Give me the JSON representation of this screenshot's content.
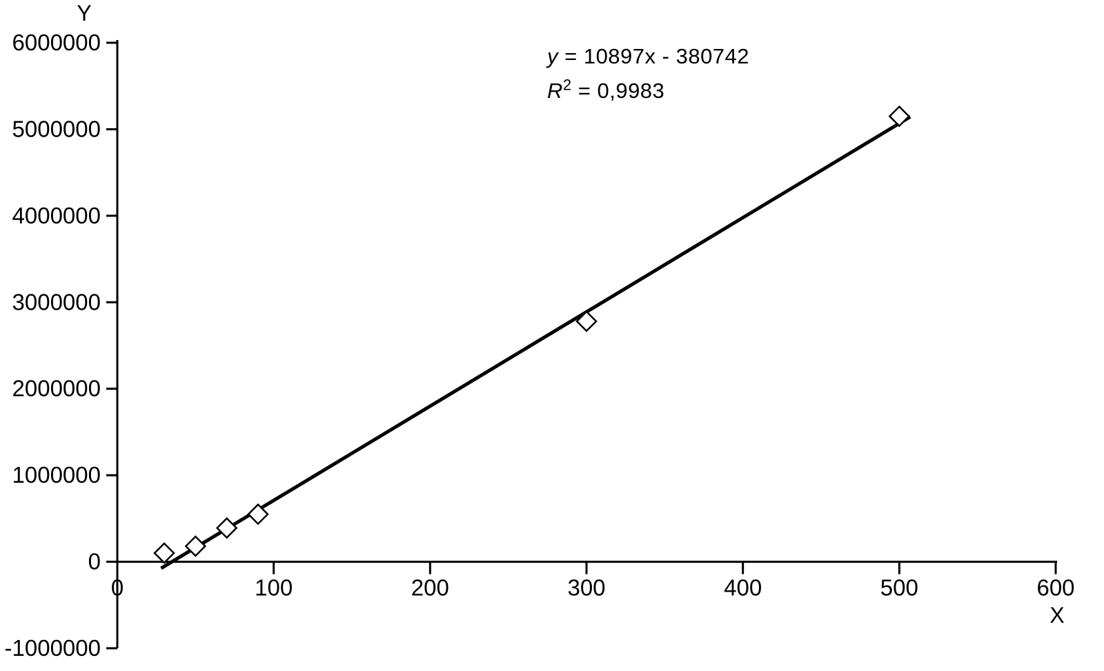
{
  "chart_data": {
    "type": "scatter",
    "title": "",
    "xlabel": "X",
    "ylabel": "Y",
    "xlim": [
      0,
      600
    ],
    "ylim": [
      -1000000,
      6000000
    ],
    "x_ticks": [
      0,
      100,
      200,
      300,
      400,
      500,
      600
    ],
    "y_ticks": [
      -1000000,
      0,
      1000000,
      2000000,
      3000000,
      4000000,
      5000000,
      6000000
    ],
    "grid": false,
    "legend": false,
    "marker": "open-diamond",
    "points": [
      {
        "x": 30,
        "y": 100000
      },
      {
        "x": 50,
        "y": 180000
      },
      {
        "x": 70,
        "y": 390000
      },
      {
        "x": 90,
        "y": 550000
      },
      {
        "x": 300,
        "y": 2780000
      },
      {
        "x": 500,
        "y": 5150000
      }
    ],
    "trendline": {
      "slope": 10897,
      "intercept": -380742,
      "x_start": 28,
      "x_end": 507
    },
    "annotation": {
      "equation_lhs": "y",
      "equation_rhs": " = 10897x - 380742",
      "r2_base": "R",
      "r2_exp": "2",
      "r2_value": " = 0,9983"
    },
    "colors": {
      "axis": "#000000",
      "line": "#000000",
      "marker_fill": "#ffffff",
      "marker_stroke": "#000000",
      "background": "#ffffff"
    }
  }
}
